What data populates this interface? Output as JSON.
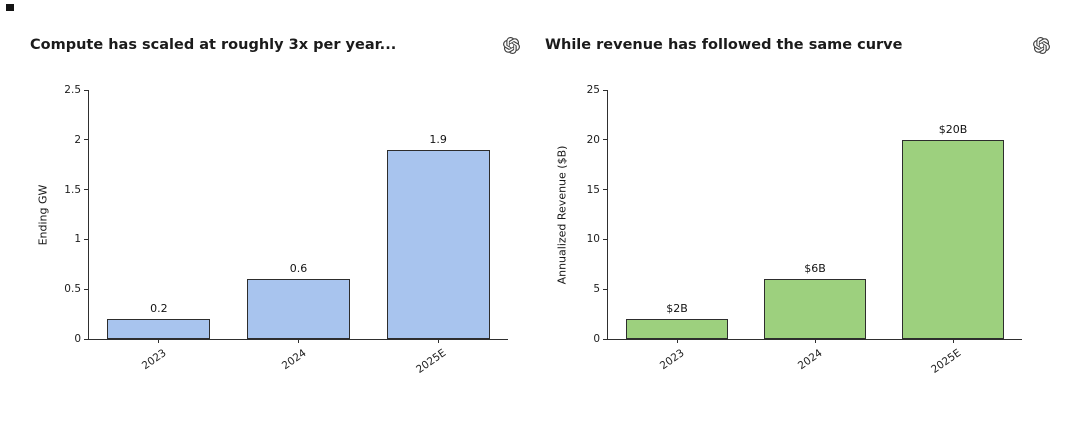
{
  "page": {
    "background": "#ffffff"
  },
  "icons": {
    "corner_logo": "openai-logo"
  },
  "chart_data": [
    {
      "type": "bar",
      "title": "Compute has scaled at roughly 3x per year...",
      "categories": [
        "2023",
        "2024",
        "2025E"
      ],
      "values": [
        0.2,
        0.6,
        1.9
      ],
      "bar_labels": [
        "0.2",
        "0.6",
        "1.9"
      ],
      "xlabel": "",
      "ylabel": "Ending GW",
      "ylim": [
        0,
        2.5
      ],
      "yticks": [
        0,
        0.5,
        1,
        1.5,
        2,
        2.5
      ],
      "ytick_labels": [
        "0",
        "0.5",
        "1",
        "1.5",
        "2",
        "2.5"
      ],
      "xtick_rotation_deg": -35,
      "grid": false,
      "legend": "none",
      "bar_color": "#a8c4ee",
      "bar_edge_color": "#2d2d2d"
    },
    {
      "type": "bar",
      "title": "While revenue has followed the same curve",
      "categories": [
        "2023",
        "2024",
        "2025E"
      ],
      "values": [
        2,
        6,
        20
      ],
      "bar_labels": [
        "$2B",
        "$6B",
        "$20B"
      ],
      "xlabel": "",
      "ylabel": "Annualized Revenue ($B)",
      "ylim": [
        0,
        25
      ],
      "yticks": [
        0,
        5,
        10,
        15,
        20,
        25
      ],
      "ytick_labels": [
        "0",
        "5",
        "10",
        "15",
        "20",
        "25"
      ],
      "xtick_rotation_deg": -35,
      "grid": false,
      "legend": "none",
      "bar_color": "#9dd07e",
      "bar_edge_color": "#2d2d2d"
    }
  ]
}
